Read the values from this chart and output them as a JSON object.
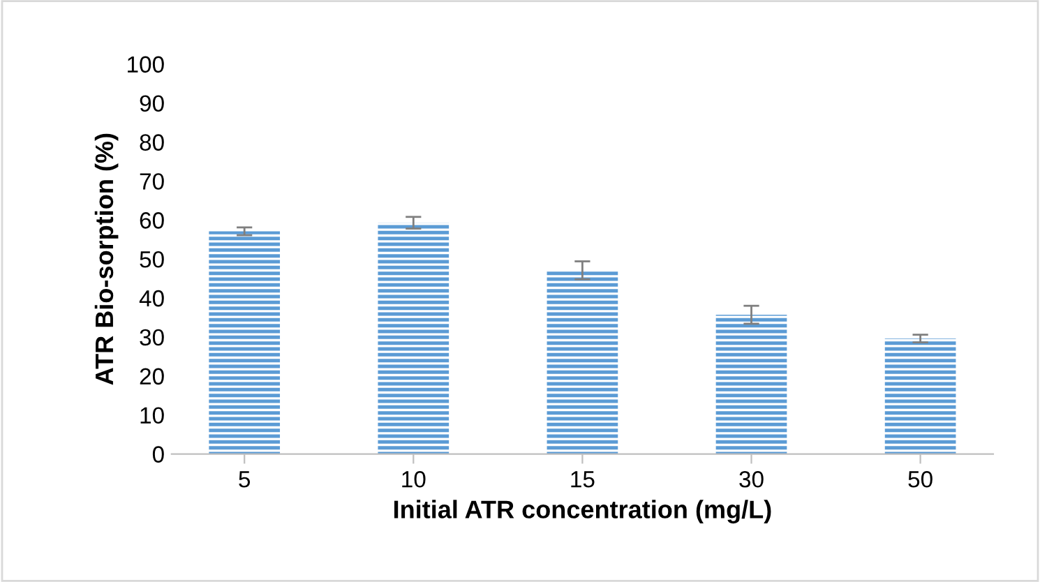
{
  "chart_data": {
    "type": "bar",
    "xlabel": "Initial ATR concentration (mg/L)",
    "ylabel": "ATR Bio-sorption (%)",
    "categories": [
      "5",
      "10",
      "15",
      "30",
      "50"
    ],
    "values": [
      57.1,
      59.3,
      47.1,
      35.7,
      29.6
    ],
    "errors": [
      1.0,
      1.5,
      2.3,
      2.3,
      1.0
    ],
    "color": "#5b9bd5",
    "ylim": [
      0,
      100
    ],
    "yticks": [
      0,
      10,
      20,
      30,
      40,
      50,
      60,
      70,
      80,
      90,
      100
    ],
    "grid": false,
    "legend": false
  }
}
